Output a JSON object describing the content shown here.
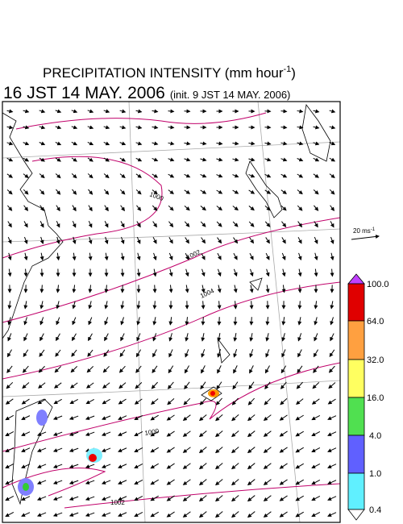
{
  "header": {
    "title": "PRECIPITATION INTENSITY (mm hour",
    "title_superscript": "-1",
    "title_end": ")",
    "valid_time": "16 JST 14 MAY. 2006",
    "init_time": "(init. 9 JST 14 MAY. 2006)"
  },
  "vector_legend": {
    "label": "20 ms",
    "superscript": "-1"
  },
  "colorbar": {
    "labels": [
      "100.0",
      "64.0",
      "32.0",
      "16.0",
      "4.0",
      "1.0",
      "0.4"
    ]
  },
  "contour_labels": [
    "1000",
    "1002",
    "1004",
    "1000",
    "1002"
  ]
}
